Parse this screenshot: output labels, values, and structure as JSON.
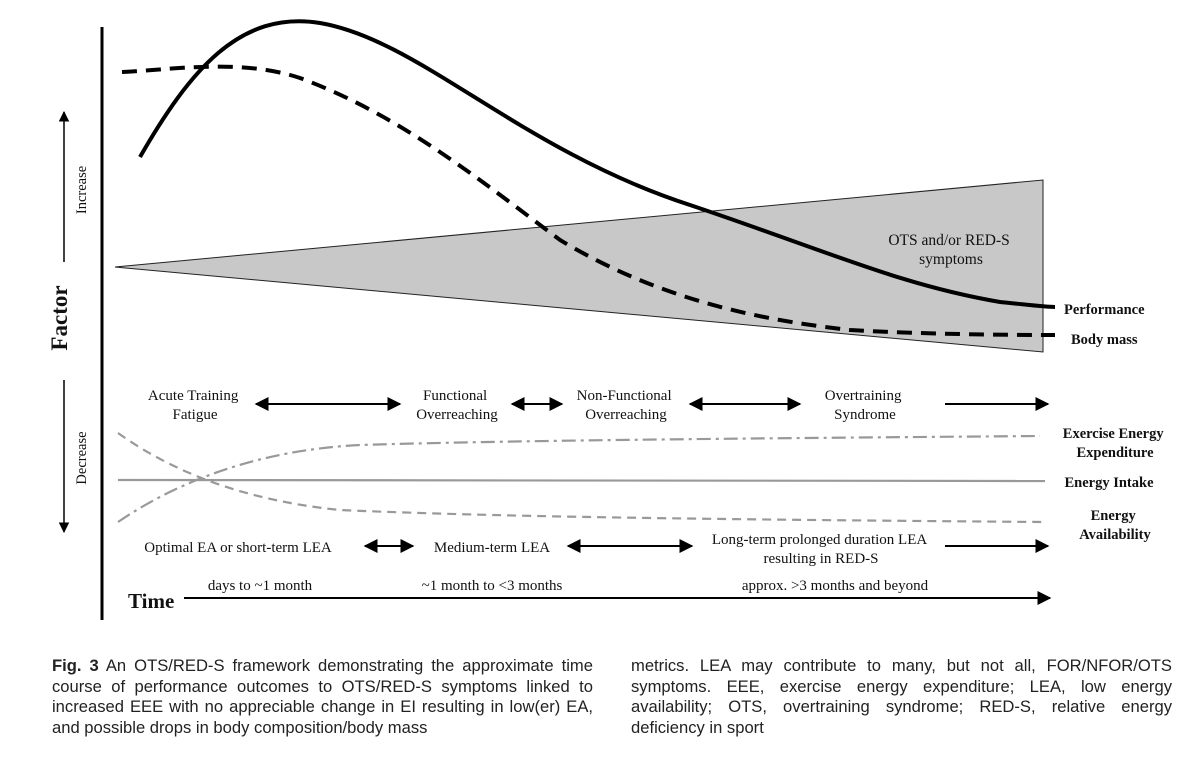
{
  "axes": {
    "y_title": "Factor",
    "y_increase": "Increase",
    "y_decrease": "Decrease",
    "x_title": "Time"
  },
  "upper_panel": {
    "shaded_region_label": [
      "OTS and/or RED-S",
      "symptoms"
    ],
    "curves": [
      {
        "name": "Performance",
        "style": "solid",
        "color": "#000000"
      },
      {
        "name": "Body mass",
        "style": "dashed",
        "color": "#000000"
      }
    ],
    "shaded_color": "#c8c8c8"
  },
  "stages": [
    {
      "label": [
        "Acute Training",
        "Fatigue"
      ]
    },
    {
      "label": [
        "Functional",
        "Overreaching"
      ]
    },
    {
      "label": [
        "Non-Functional",
        "Overreaching"
      ]
    },
    {
      "label": [
        "Overtraining",
        "Syndrome"
      ]
    }
  ],
  "lower_panel": {
    "curves": [
      {
        "name": [
          "Exercise Energy",
          "Expenditure"
        ],
        "style": "dash-dot",
        "color": "#999999"
      },
      {
        "name": [
          "Energy Intake"
        ],
        "style": "solid",
        "color": "#999999"
      },
      {
        "name": [
          "Energy",
          "Availability"
        ],
        "style": "dashed",
        "color": "#999999"
      }
    ]
  },
  "ea_phases": [
    {
      "label": [
        "Optimal EA or short-term LEA"
      ]
    },
    {
      "label": [
        "Medium-term LEA"
      ]
    },
    {
      "label": [
        "Long-term prolonged duration LEA",
        "resulting in RED-S"
      ]
    }
  ],
  "time_ranges": [
    "days to ~1 month",
    "~1 month to <3 months",
    "approx. >3 months and beyond"
  ],
  "caption": {
    "fig_label": "Fig. 3",
    "col1": "An OTS/RED-S framework demonstrating the approximate time course of performance outcomes to OTS/RED-S symptoms linked to increased EEE with no appreciable change in EI resulting in low(er) EA, and possible drops in body composition/body mass",
    "col2": "metrics. LEA may contribute to many, but not all, FOR/NFOR/OTS symptoms. EEE, exercise energy expenditure; LEA, low energy availability; OTS, overtraining syndrome; RED-S, relative energy deficiency in sport"
  }
}
